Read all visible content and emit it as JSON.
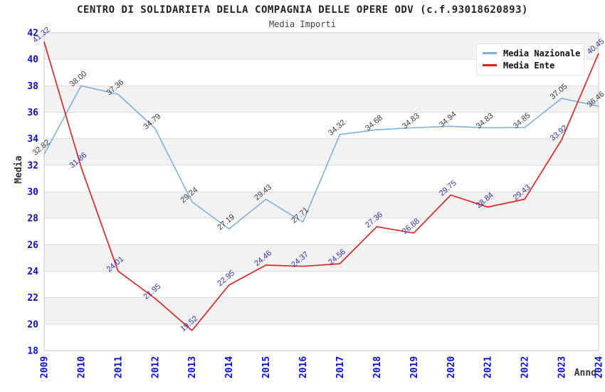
{
  "title": "CENTRO DI SOLIDARIETA DELLA COMPAGNIA DELLE OPERE ODV (c.f.93018620893)",
  "subtitle": "Media Importi",
  "legend": {
    "position": "top-right",
    "entries": [
      {
        "label": "Media Nazionale",
        "color": "#7CB0E2"
      },
      {
        "label": "Media Ente",
        "color": "#DD1C1C"
      }
    ]
  },
  "colors": {
    "band_gray": "#f2f2f2",
    "grid_line": "#dcdcdc",
    "plot_border": "#c8c8c8",
    "axis_tick_text": "#0b0bcc",
    "nazionale_line": "#7CB0E2",
    "ente_line": "#DD1C1C",
    "nazionale_label_text": "#3a3a3a",
    "ente_label_text": "#3030a8"
  },
  "chart_data": {
    "type": "line",
    "title": "CENTRO DI SOLIDARIETA DELLA COMPAGNIA DELLE OPERE ODV (c.f.93018620893)",
    "subtitle": "Media Importi",
    "xlabel": "Anno",
    "ylabel": "Media",
    "ylim": [
      18,
      42
    ],
    "ytick_step": 2,
    "grid": "horizontal gridlines with alternating gray/white bands every 2 units",
    "legend_position": "top-right",
    "x": [
      "2009",
      "2010",
      "2011",
      "2012",
      "2013",
      "2014",
      "2015",
      "2016",
      "2017",
      "2018",
      "2019",
      "2020",
      "2021",
      "2022",
      "2023",
      "2024"
    ],
    "series": [
      {
        "name": "Media Nazionale",
        "color": "#7CB0E2",
        "label_color": "#3a3a3a",
        "values": [
          32.82,
          38.0,
          37.36,
          34.79,
          29.24,
          27.19,
          29.43,
          27.71,
          34.32,
          34.68,
          34.83,
          34.94,
          34.83,
          34.85,
          37.05,
          36.46
        ]
      },
      {
        "name": "Media Ente",
        "color": "#DD1C1C",
        "label_color": "#3030a8",
        "values": [
          41.32,
          31.86,
          24.01,
          21.95,
          19.52,
          22.95,
          24.46,
          24.37,
          24.56,
          27.36,
          26.88,
          29.75,
          28.84,
          29.43,
          33.92,
          40.45
        ]
      }
    ]
  }
}
